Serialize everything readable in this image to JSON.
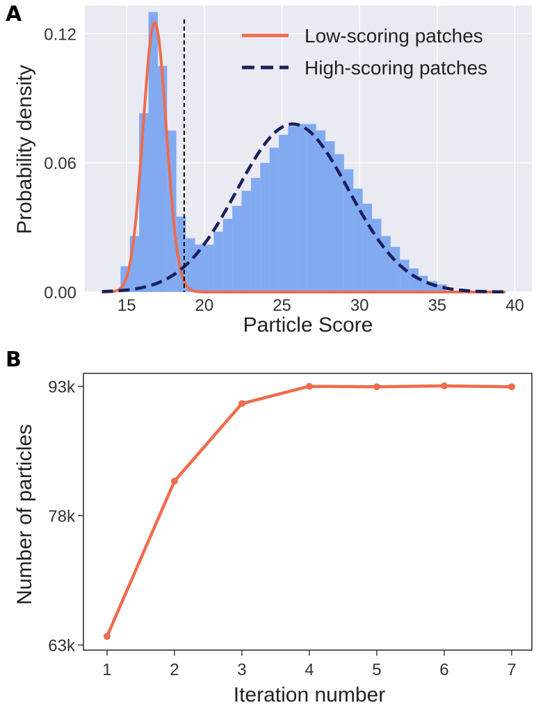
{
  "chart_data": [
    {
      "panel_label": "A",
      "type": "bar",
      "xlabel": "Particle Score",
      "ylabel": "Probability density",
      "xlim": [
        12.3,
        41.1
      ],
      "ylim": [
        0,
        0.133
      ],
      "xticks": [
        "15",
        "20",
        "25",
        "30",
        "35",
        "40"
      ],
      "xtick_values": [
        15,
        20,
        25,
        30,
        35,
        40
      ],
      "yticks": [
        "0.00",
        "0.06",
        "0.12"
      ],
      "ytick_values": [
        0,
        0.06,
        0.12
      ],
      "grid": true,
      "background": "#EAEAF2",
      "legend_position": "top-right",
      "histogram": {
        "color": "#7BA7F0",
        "bin_start": 13.4,
        "bin_width": 0.6,
        "values": [
          0.0003,
          0.001,
          0.012,
          0.026,
          0.083,
          0.13,
          0.105,
          0.075,
          0.035,
          0.025,
          0.022,
          0.022,
          0.028,
          0.034,
          0.04,
          0.047,
          0.053,
          0.06,
          0.067,
          0.073,
          0.077,
          0.078,
          0.078,
          0.075,
          0.07,
          0.064,
          0.057,
          0.048,
          0.041,
          0.034,
          0.026,
          0.021,
          0.015,
          0.011,
          0.0075,
          0.005,
          0.0035,
          0.0022,
          0.0014,
          0.0009,
          0.0005,
          0.0003,
          0.0002,
          0.0001
        ]
      },
      "series": [
        {
          "name": "Low-scoring patches",
          "kind": "gaussian",
          "mean": 16.8,
          "sd": 0.75,
          "peak": 0.125,
          "x_range": [
            13.4,
            39.4
          ],
          "color": "#EE6C4D",
          "style": "solid"
        },
        {
          "name": "High-scoring patches",
          "kind": "gaussian",
          "mean": 25.7,
          "sd": 3.6,
          "peak": 0.078,
          "x_range": [
            13.4,
            39.4
          ],
          "color": "#1A1F5E",
          "style": "dashed"
        }
      ],
      "vline": {
        "x": 18.7,
        "color": "#000000",
        "style": "dashed"
      }
    },
    {
      "panel_label": "B",
      "type": "line",
      "xlabel": "Iteration number",
      "ylabel": "Number of particles",
      "x": [
        1,
        2,
        3,
        4,
        5,
        6,
        7
      ],
      "series": [
        {
          "values": [
            64000,
            82000,
            91000,
            93000,
            92950,
            93050,
            92950
          ],
          "color": "#EE6C4D"
        }
      ],
      "xlim": [
        0.65,
        7.3
      ],
      "ylim": [
        62400,
        94500
      ],
      "xticks": [
        "1",
        "2",
        "3",
        "4",
        "5",
        "6",
        "7"
      ],
      "xtick_values": [
        1,
        2,
        3,
        4,
        5,
        6,
        7
      ],
      "yticks": [
        "63k",
        "78k",
        "93k"
      ],
      "ytick_values": [
        63000,
        78000,
        93000
      ],
      "grid": false,
      "background": "#FFFFFF"
    }
  ]
}
